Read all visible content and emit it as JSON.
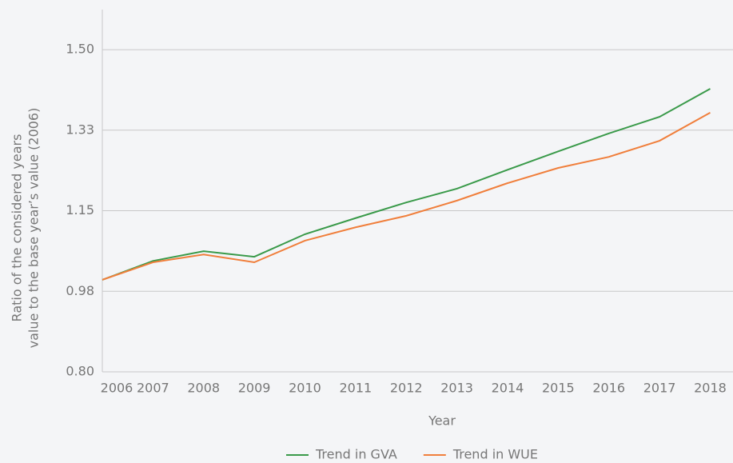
{
  "chart_data": {
    "type": "line",
    "x": [
      2006,
      2007,
      2008,
      2009,
      2010,
      2011,
      2012,
      2013,
      2014,
      2015,
      2016,
      2017,
      2018
    ],
    "series": [
      {
        "name": "Trend in GVA",
        "color": "#3a9a4a",
        "values": [
          1.0,
          1.041,
          1.062,
          1.05,
          1.099,
          1.134,
          1.168,
          1.198,
          1.239,
          1.279,
          1.318,
          1.354,
          1.415
        ]
      },
      {
        "name": "Trend in WUE",
        "color": "#f07f3c",
        "values": [
          1.0,
          1.038,
          1.055,
          1.038,
          1.085,
          1.114,
          1.139,
          1.172,
          1.21,
          1.243,
          1.267,
          1.302,
          1.363
        ]
      }
    ],
    "xlabel": "Year",
    "ylabel": [
      "Ratio of the considered years",
      "value to the base year’s value (2006)"
    ],
    "xlim": [
      2006,
      2018.45
    ],
    "ylim": [
      0.8,
      1.587
    ],
    "yticks": [
      {
        "value": 0.8,
        "label": "0.80"
      },
      {
        "value": 0.975,
        "label": "0.98"
      },
      1.15,
      {
        "value": 1.325,
        "label": "1.33"
      },
      {
        "value": 1.5,
        "label": "1.50"
      }
    ],
    "grid": true,
    "legend": "bottom"
  }
}
